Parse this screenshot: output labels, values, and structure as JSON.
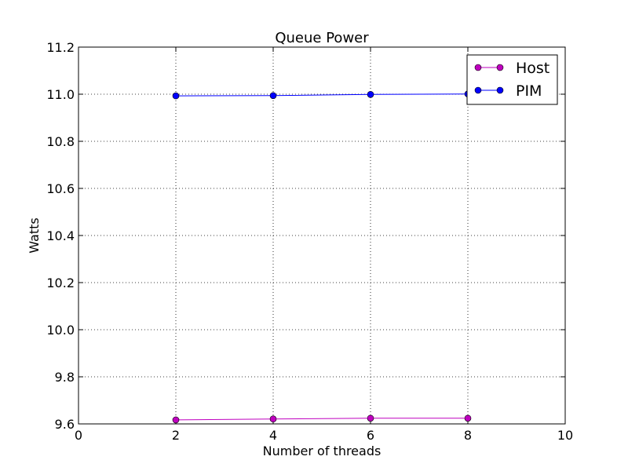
{
  "chart_data": {
    "type": "line",
    "title": "Queue Power",
    "xlabel": "Number of threads",
    "ylabel": "Watts",
    "xlim": [
      0,
      10
    ],
    "ylim": [
      9.6,
      11.2
    ],
    "xticks": [
      "0",
      "2",
      "4",
      "6",
      "8",
      "10"
    ],
    "yticks": [
      "9.6",
      "9.8",
      "10.0",
      "10.2",
      "10.4",
      "10.6",
      "10.8",
      "11.0",
      "11.2"
    ],
    "grid": true,
    "legend_position": "top-right",
    "x": [
      2,
      4,
      6,
      8
    ],
    "series": [
      {
        "name": "Host",
        "color": "#bf00bf",
        "values": [
          9.617,
          9.621,
          9.624,
          9.624
        ]
      },
      {
        "name": "PIM",
        "color": "#0000ff",
        "values": [
          10.993,
          10.994,
          10.999,
          11.001
        ]
      }
    ]
  }
}
